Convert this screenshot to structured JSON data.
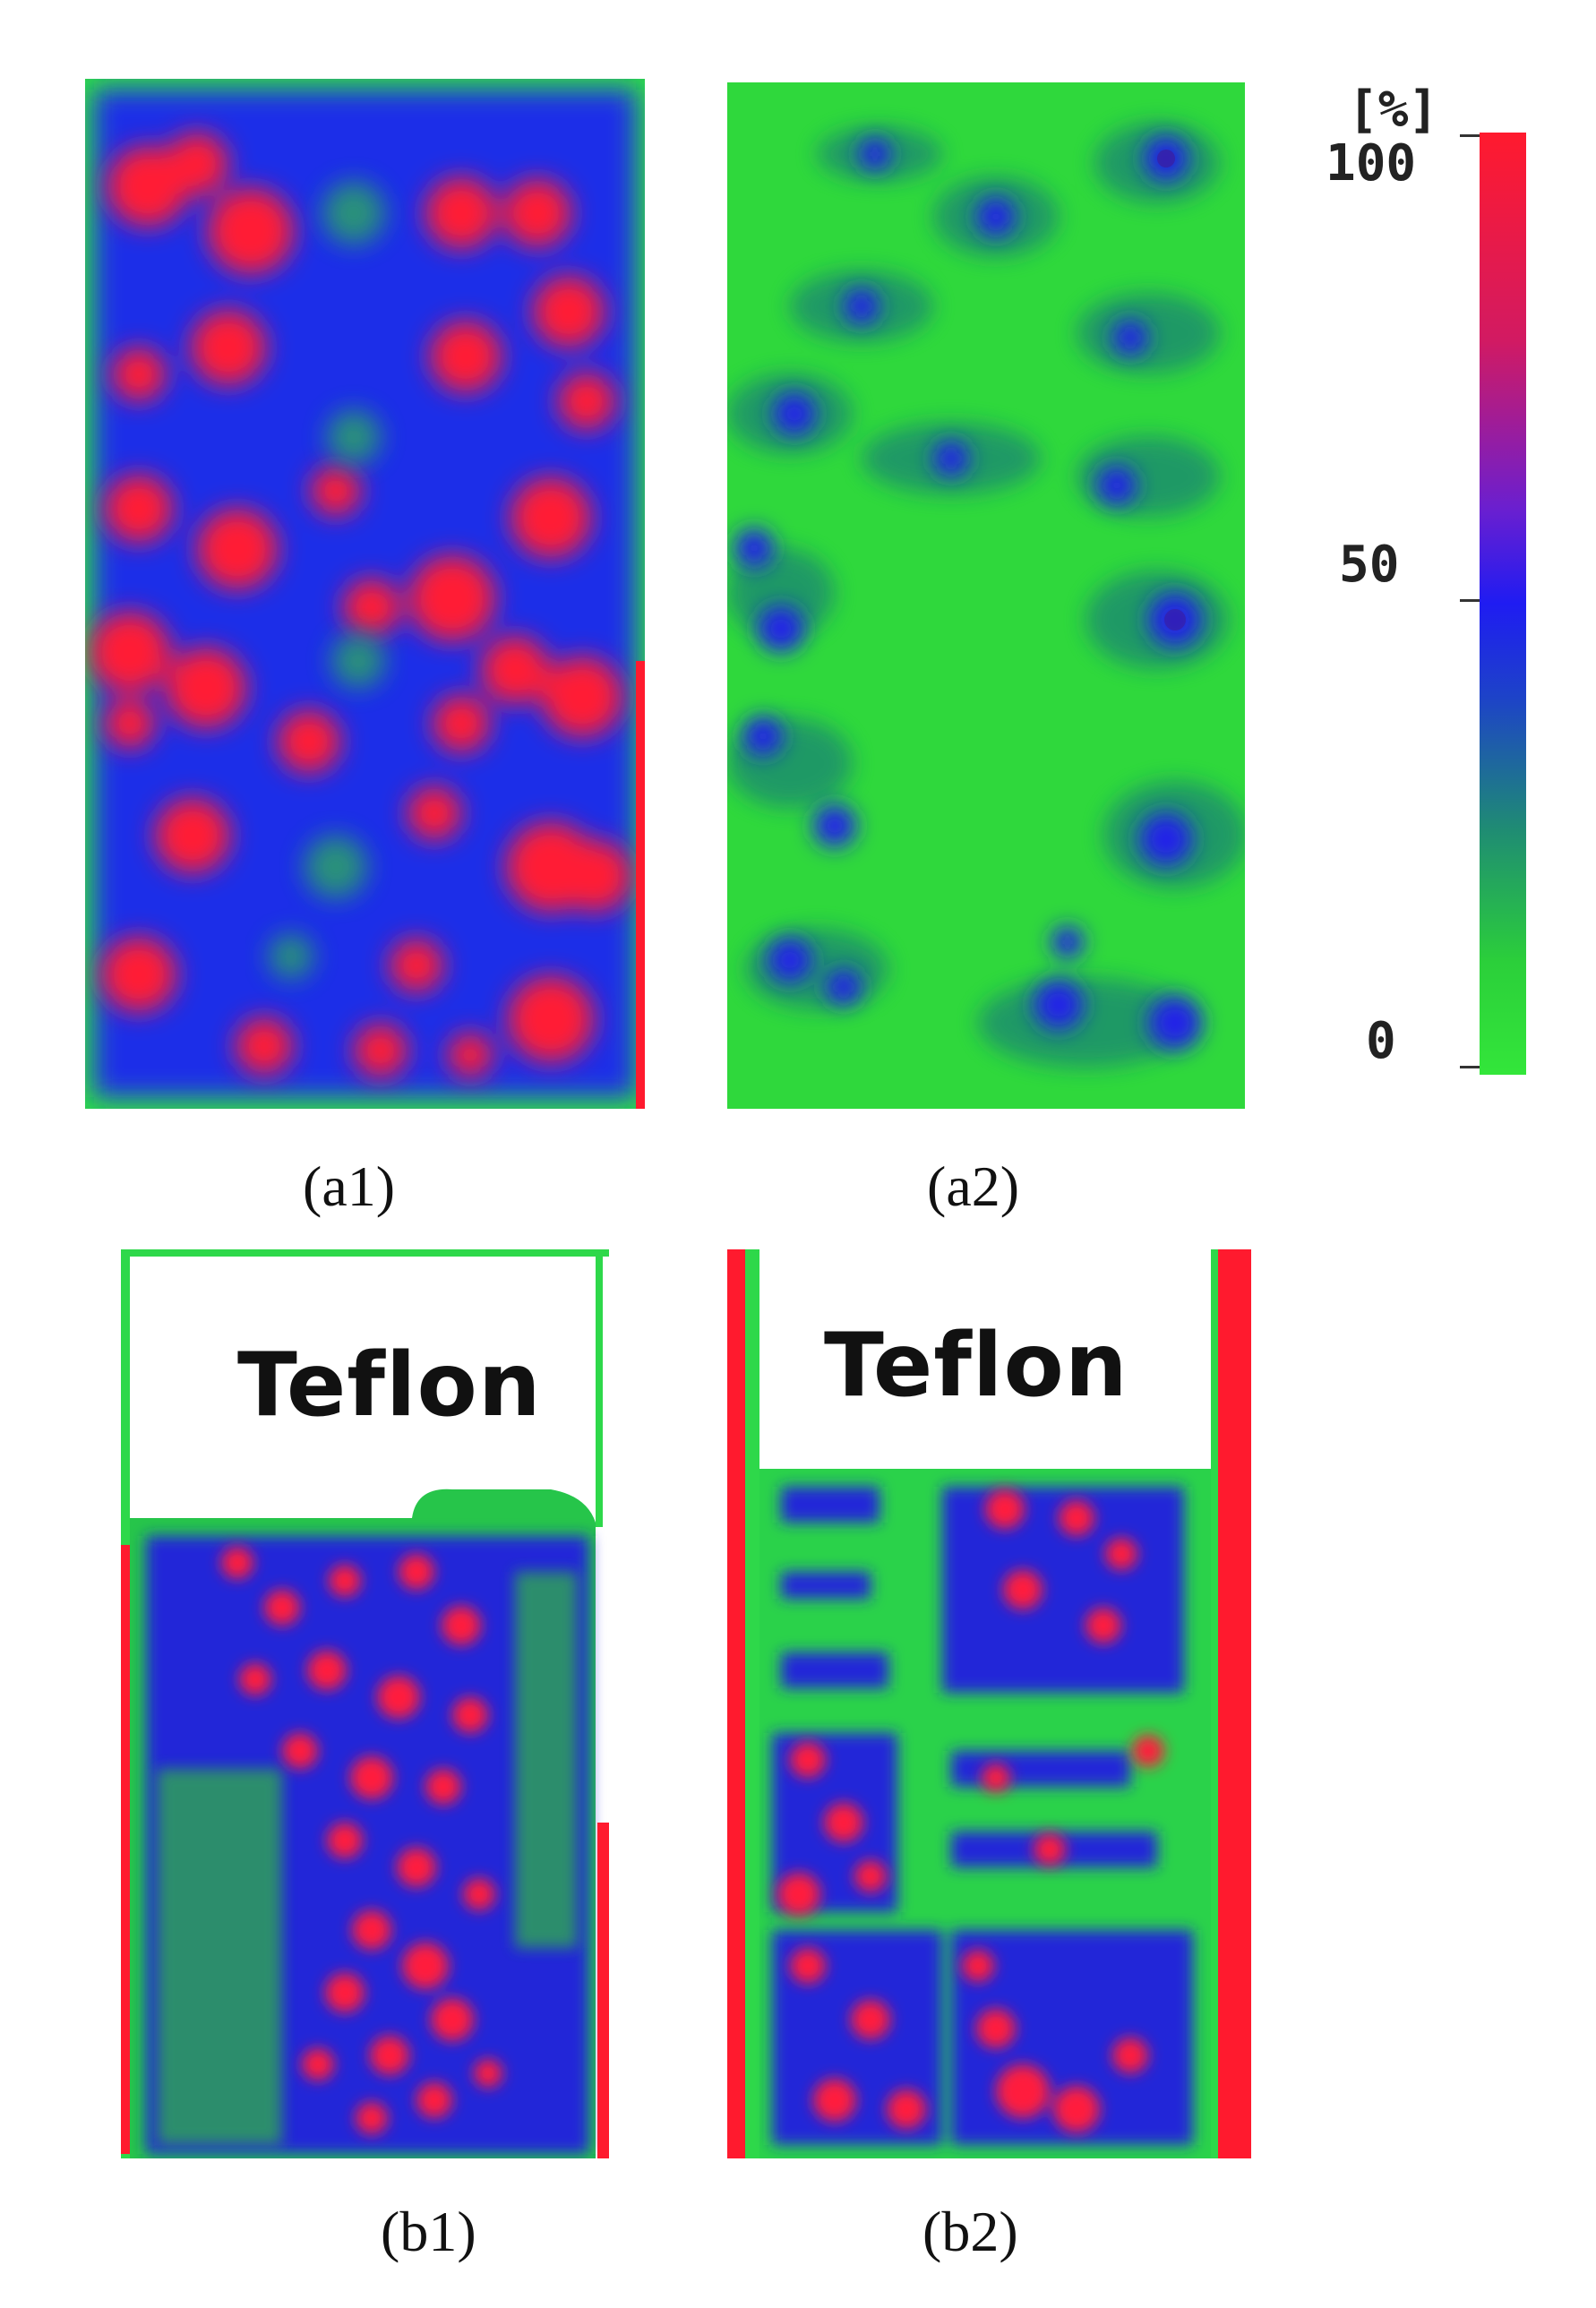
{
  "figure": {
    "panels": [
      {
        "id": "a1",
        "caption": "(a1)"
      },
      {
        "id": "a2",
        "caption": "(a2)"
      },
      {
        "id": "b1",
        "caption": "(b1)",
        "region_label": "Teflon"
      },
      {
        "id": "b2",
        "caption": "(b2)",
        "region_label": "Teflon"
      }
    ],
    "color_scale": {
      "unit": "[%]",
      "max_label": "100",
      "mid_label": "50",
      "min_label": "0",
      "colors": {
        "high": "#ff1a2e",
        "mid": "#1f1cf2",
        "low": "#33e63a",
        "dark": "#1f8c73"
      }
    }
  }
}
